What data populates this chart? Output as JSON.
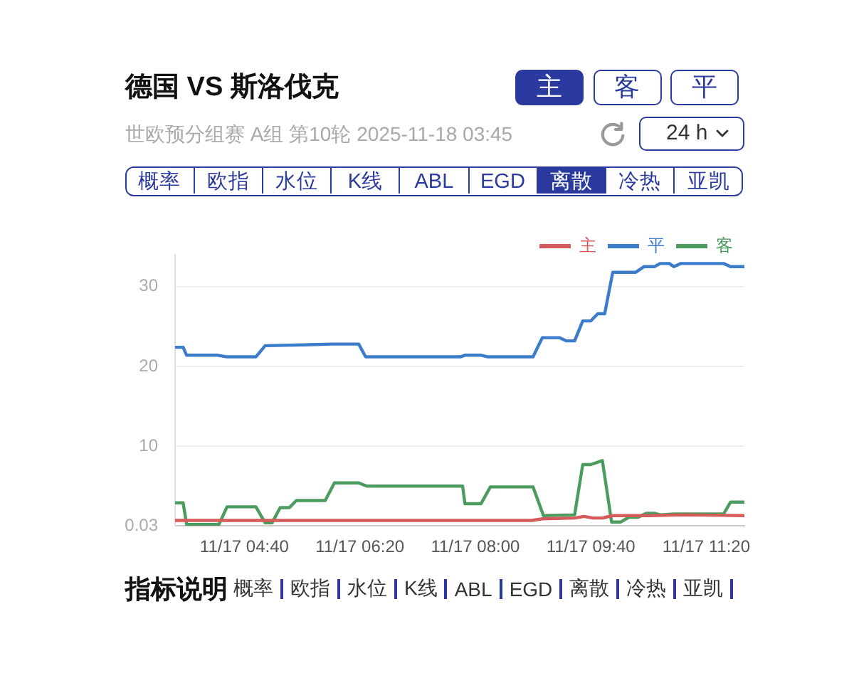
{
  "chart_data": {
    "type": "line",
    "title": "德国 VS 斯洛伐克",
    "subtitle": "世欧预分组赛 A组 第10轮 2025-11-18 03:45",
    "annotations": [
      "主",
      "客",
      "平",
      "24 h",
      "概率",
      "欧指",
      "水位",
      "K线",
      "ABL",
      "EGD",
      "离散",
      "冷热",
      "亚凯",
      "指标说明",
      "概率",
      "欧指",
      "水位",
      "K线",
      "ABL",
      "EGD",
      "离散",
      "冷热",
      "亚凯"
    ],
    "series": [
      {
        "name": "主",
        "color": "#d65a5a",
        "x": [
          "--11-17T03:40",
          "--11-17T08:49",
          "--11-17T08:58",
          "--11-17T09:26",
          "--11-17T09:34",
          "--11-17T09:42",
          "--11-17T09:50",
          "--11-17T09:59",
          "--11-17T10:31",
          "--11-17T11:00",
          "--11-17T11:53"
        ],
        "values": [
          0.7,
          0.7,
          0.9,
          1.0,
          1.2,
          1.0,
          1.0,
          1.3,
          1.3,
          1.4,
          1.3
        ]
      },
      {
        "name": "平",
        "color": "#3b7ccb",
        "x": [
          "--11-17T03:40",
          "--11-17T03:47",
          "--11-17T03:50",
          "--11-17T04:17",
          "--11-17T04:25",
          "--11-17T04:50",
          "--11-17T04:58",
          "--11-17T05:31",
          "--11-17T05:56",
          "--11-17T06:19",
          "--11-17T06:25",
          "--11-17T07:47",
          "--11-17T07:51",
          "--11-17T08:05",
          "--11-17T08:11",
          "--11-17T08:50",
          "--11-17T08:58",
          "--11-17T09:13",
          "--11-17T09:19",
          "--11-17T09:26",
          "--11-17T09:33",
          "--11-17T09:40",
          "--11-17T09:46",
          "--11-17T09:52",
          "--11-17T09:59",
          "--11-17T10:19",
          "--11-17T10:26",
          "--11-17T10:35",
          "--11-17T10:40",
          "--11-17T10:48",
          "--11-17T10:52",
          "--11-17T10:58",
          "--11-17T11:35",
          "--11-17T11:41",
          "--11-17T11:53"
        ],
        "values": [
          22.4,
          22.4,
          21.4,
          21.4,
          21.2,
          21.2,
          22.6,
          22.7,
          22.8,
          22.8,
          21.2,
          21.2,
          21.4,
          21.4,
          21.2,
          21.2,
          23.6,
          23.6,
          23.2,
          23.2,
          25.7,
          25.7,
          26.6,
          26.6,
          31.8,
          31.8,
          32.5,
          32.5,
          32.9,
          32.9,
          32.5,
          32.9,
          32.9,
          32.5,
          32.5
        ]
      },
      {
        "name": "客",
        "color": "#4c9c5f",
        "x": [
          "--11-17T03:40",
          "--11-17T03:47",
          "--11-17T03:50",
          "--11-17T04:18",
          "--11-17T04:25",
          "--11-17T04:50",
          "--11-17T04:58",
          "--11-17T05:04",
          "--11-17T05:11",
          "--11-17T05:19",
          "--11-17T05:25",
          "--11-17T05:50",
          "--11-17T05:58",
          "--11-17T06:19",
          "--11-17T06:26",
          "--11-17T07:49",
          "--11-17T07:51",
          "--11-17T08:05",
          "--11-17T08:13",
          "--11-17T08:50",
          "--11-17T08:59",
          "--11-17T09:26",
          "--11-17T09:33",
          "--11-17T09:40",
          "--11-17T09:50",
          "--11-17T09:58",
          "--11-17T10:06",
          "--11-17T10:13",
          "--11-17T10:21",
          "--11-17T10:28",
          "--11-17T10:35",
          "--11-17T10:40",
          "--11-17T10:52",
          "--11-17T11:35",
          "--11-17T11:41",
          "--11-17T11:53"
        ],
        "values": [
          2.9,
          2.9,
          0.2,
          0.2,
          2.4,
          2.4,
          0.4,
          0.4,
          2.3,
          2.3,
          3.2,
          3.2,
          5.4,
          5.4,
          5.0,
          5.0,
          2.8,
          2.8,
          4.9,
          4.9,
          1.3,
          1.4,
          7.7,
          7.7,
          8.2,
          0.5,
          0.5,
          1.1,
          1.1,
          1.6,
          1.6,
          1.4,
          1.5,
          1.5,
          3.0,
          3.0
        ]
      }
    ],
    "xlim": [
      "--11-17T03:40",
      "--11-17T11:53"
    ],
    "xticks": [
      {
        "value": "--11-17T04:40",
        "label": "11/17 04:40"
      },
      {
        "value": "--11-17T06:20",
        "label": "11/17 06:20"
      },
      {
        "value": "--11-17T08:00",
        "label": "11/17 08:00"
      },
      {
        "value": "--11-17T09:40",
        "label": "11/17 09:40"
      },
      {
        "value": "--11-17T11:20",
        "label": "11/17 11:20"
      }
    ],
    "ylim": [
      0.03,
      34
    ],
    "yticks": [
      0.03,
      10,
      20,
      30
    ],
    "grid": "y",
    "legend": "top right",
    "marker": "none",
    "line_style": "solid"
  }
}
